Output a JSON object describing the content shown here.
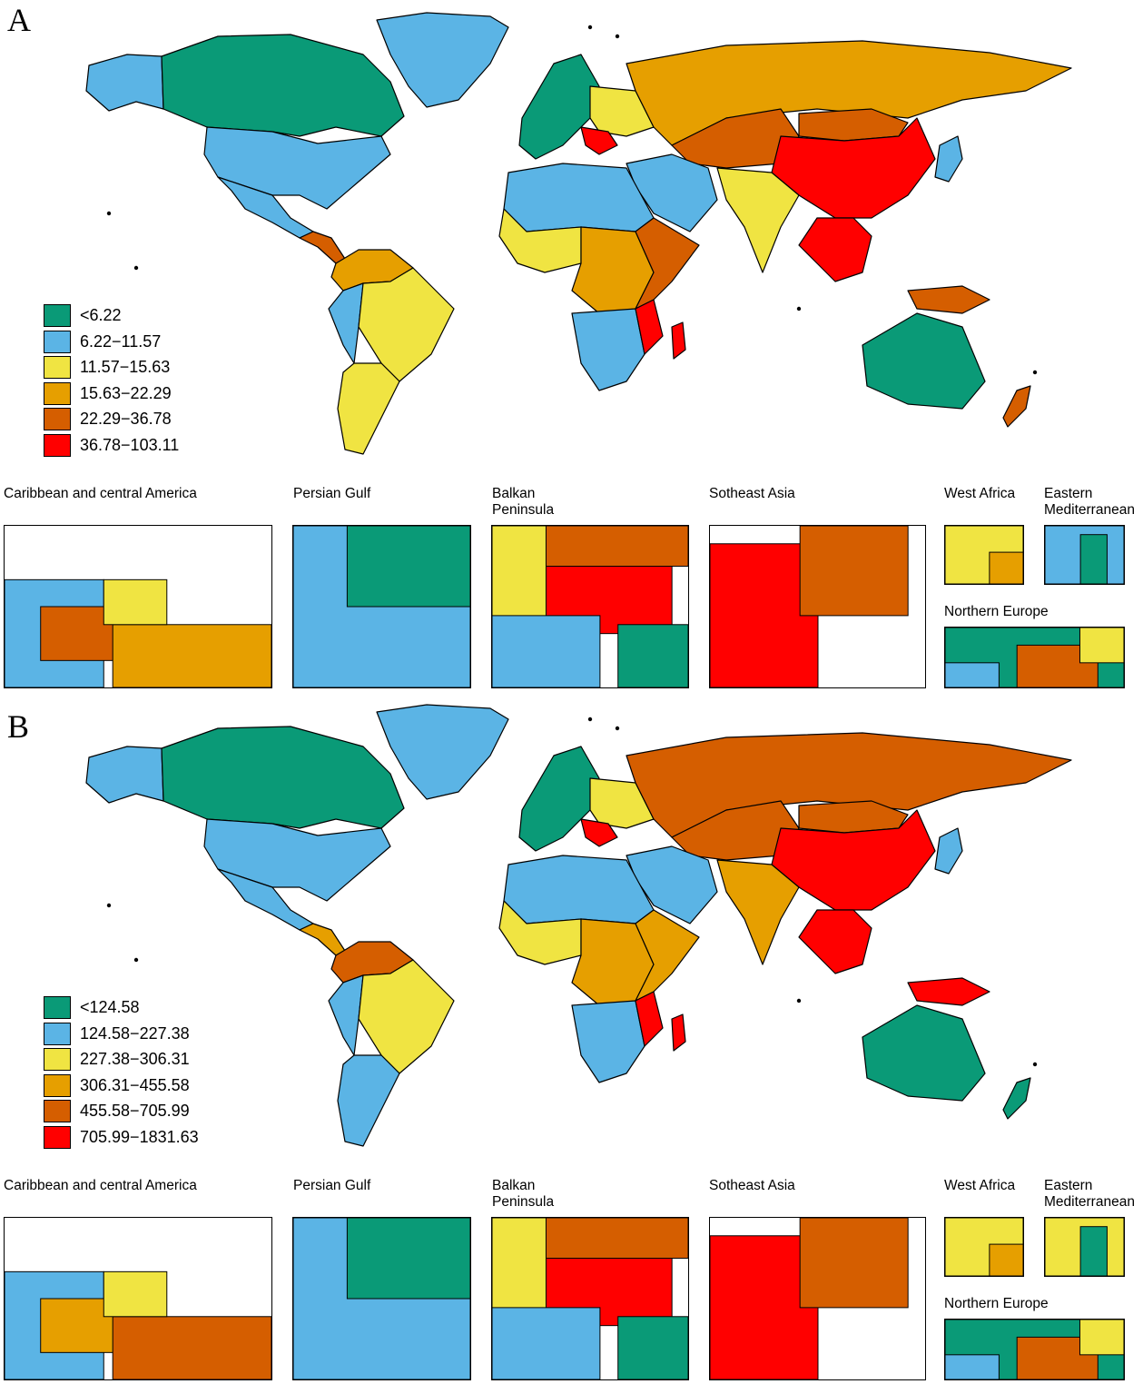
{
  "colors": {
    "green": "#0a9a77",
    "blue": "#5bb4e5",
    "yellow": "#f0e442",
    "orange": "#e69f00",
    "dark_orange": "#d55e00",
    "red": "#ff0000",
    "outline": "#000000"
  },
  "panels": [
    {
      "letter": "A",
      "legend": [
        {
          "label": "<6.22",
          "color": "#0a9a77"
        },
        {
          "label": "6.22−11.57",
          "color": "#5bb4e5"
        },
        {
          "label": "11.57−15.63",
          "color": "#f0e442"
        },
        {
          "label": "15.63−22.29",
          "color": "#e69f00"
        },
        {
          "label": "22.29−36.78",
          "color": "#d55e00"
        },
        {
          "label": "36.78−103.11",
          "color": "#ff0000"
        }
      ],
      "region_colors": {
        "canada": "#0a9a77",
        "alaska": "#5bb4e5",
        "greenland": "#5bb4e5",
        "usa": "#5bb4e5",
        "mexico": "#5bb4e5",
        "central_america": "#d55e00",
        "south_america_north": "#e69f00",
        "brazil": "#f0e442",
        "andes": "#5bb4e5",
        "southern_cone": "#f0e442",
        "western_europe": "#0a9a77",
        "eastern_europe": "#f0e442",
        "balkans": "#ff0000",
        "russia": "#e69f00",
        "central_asia": "#d55e00",
        "china": "#ff0000",
        "mongolia": "#d55e00",
        "middle_east": "#5bb4e5",
        "south_asia": "#f0e442",
        "southeast_asia": "#ff0000",
        "japan": "#5bb4e5",
        "north_africa": "#5bb4e5",
        "west_africa": "#f0e442",
        "central_africa": "#e69f00",
        "east_africa": "#d55e00",
        "southern_africa": "#5bb4e5",
        "mozambique": "#ff0000",
        "madagascar": "#ff0000",
        "australia": "#0a9a77",
        "new_zealand": "#d55e00",
        "new_guinea": "#d55e00"
      },
      "insets": [
        {
          "title": "Caribbean and central America",
          "colors": [
            "#5bb4e5",
            "#d55e00",
            "#e69f00",
            "#f0e442"
          ]
        },
        {
          "title": "Persian Gulf",
          "colors": [
            "#5bb4e5",
            "#0a9a77"
          ]
        },
        {
          "title": "Balkan\nPeninsula",
          "colors": [
            "#ff0000",
            "#d55e00",
            "#f0e442",
            "#5bb4e5",
            "#0a9a77"
          ]
        },
        {
          "title": "Sotheast Asia",
          "colors": [
            "#ff0000",
            "#d55e00"
          ]
        },
        {
          "title": "West Africa",
          "colors": [
            "#f0e442",
            "#e69f00"
          ]
        },
        {
          "title": "Eastern\nMediterranean",
          "colors": [
            "#5bb4e5",
            "#0a9a77"
          ]
        },
        {
          "title": "Northern Europe",
          "colors": [
            "#0a9a77",
            "#d55e00",
            "#f0e442",
            "#5bb4e5"
          ]
        }
      ]
    },
    {
      "letter": "B",
      "legend": [
        {
          "label": "<124.58",
          "color": "#0a9a77"
        },
        {
          "label": "124.58−227.38",
          "color": "#5bb4e5"
        },
        {
          "label": "227.38−306.31",
          "color": "#f0e442"
        },
        {
          "label": "306.31−455.58",
          "color": "#e69f00"
        },
        {
          "label": "455.58−705.99",
          "color": "#d55e00"
        },
        {
          "label": "705.99−1831.63",
          "color": "#ff0000"
        }
      ],
      "region_colors": {
        "canada": "#0a9a77",
        "alaska": "#5bb4e5",
        "greenland": "#5bb4e5",
        "usa": "#5bb4e5",
        "mexico": "#5bb4e5",
        "central_america": "#e69f00",
        "south_america_north": "#d55e00",
        "brazil": "#f0e442",
        "andes": "#5bb4e5",
        "southern_cone": "#5bb4e5",
        "western_europe": "#0a9a77",
        "eastern_europe": "#f0e442",
        "balkans": "#ff0000",
        "russia": "#d55e00",
        "central_asia": "#d55e00",
        "china": "#ff0000",
        "mongolia": "#d55e00",
        "middle_east": "#5bb4e5",
        "south_asia": "#e69f00",
        "southeast_asia": "#ff0000",
        "japan": "#5bb4e5",
        "north_africa": "#5bb4e5",
        "west_africa": "#f0e442",
        "central_africa": "#e69f00",
        "east_africa": "#e69f00",
        "southern_africa": "#5bb4e5",
        "mozambique": "#ff0000",
        "madagascar": "#ff0000",
        "australia": "#0a9a77",
        "new_zealand": "#0a9a77",
        "new_guinea": "#ff0000"
      },
      "insets": [
        {
          "title": "Caribbean and central America",
          "colors": [
            "#5bb4e5",
            "#e69f00",
            "#d55e00",
            "#f0e442"
          ]
        },
        {
          "title": "Persian Gulf",
          "colors": [
            "#5bb4e5",
            "#0a9a77"
          ]
        },
        {
          "title": "Balkan\nPeninsula",
          "colors": [
            "#ff0000",
            "#d55e00",
            "#f0e442",
            "#5bb4e5",
            "#0a9a77"
          ]
        },
        {
          "title": "Sotheast Asia",
          "colors": [
            "#ff0000",
            "#d55e00"
          ]
        },
        {
          "title": "West Africa",
          "colors": [
            "#f0e442",
            "#e69f00"
          ]
        },
        {
          "title": "Eastern\nMediterranean",
          "colors": [
            "#f0e442",
            "#0a9a77",
            "#5bb4e5"
          ]
        },
        {
          "title": "Northern Europe",
          "colors": [
            "#0a9a77",
            "#d55e00",
            "#f0e442",
            "#5bb4e5"
          ]
        }
      ]
    }
  ]
}
